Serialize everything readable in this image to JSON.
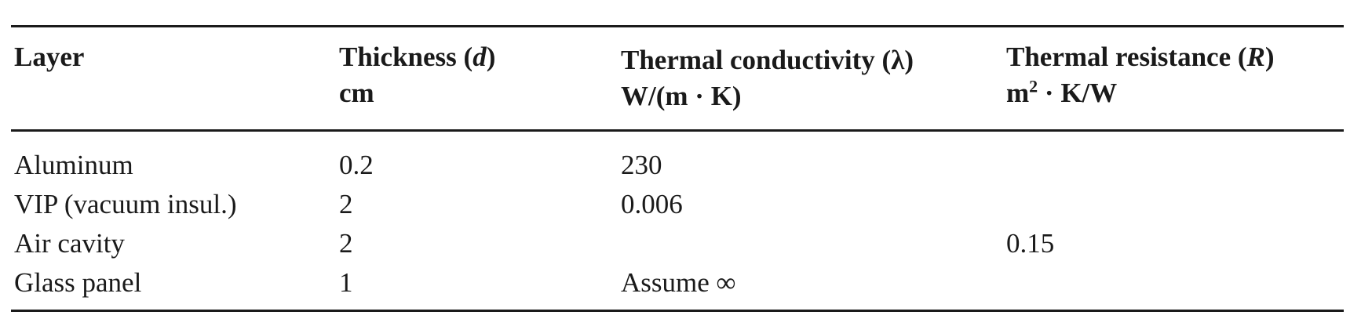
{
  "table": {
    "header": {
      "layer": "Layer",
      "thickness": {
        "name": "Thickness",
        "symbol": "d",
        "unit": "cm"
      },
      "conductivity": {
        "name": "Thermal conductivity",
        "symbol": "λ",
        "unit": "W/(m · K)"
      },
      "resistance": {
        "name": "Thermal resistance",
        "symbol": "R",
        "unit_base": "m",
        "unit_exp": "2",
        "unit_rest": " · K/W"
      }
    },
    "rows": [
      {
        "layer": "Aluminum",
        "thickness": "0.2",
        "conductivity": "230",
        "resistance": ""
      },
      {
        "layer": "VIP (vacuum insul.)",
        "thickness": "2",
        "conductivity": "0.006",
        "resistance": ""
      },
      {
        "layer": "Air cavity",
        "thickness": "2",
        "conductivity": "",
        "resistance": "0.15"
      },
      {
        "layer": "Glass panel",
        "thickness": "1",
        "conductivity": "Assume ∞",
        "resistance": ""
      }
    ]
  }
}
